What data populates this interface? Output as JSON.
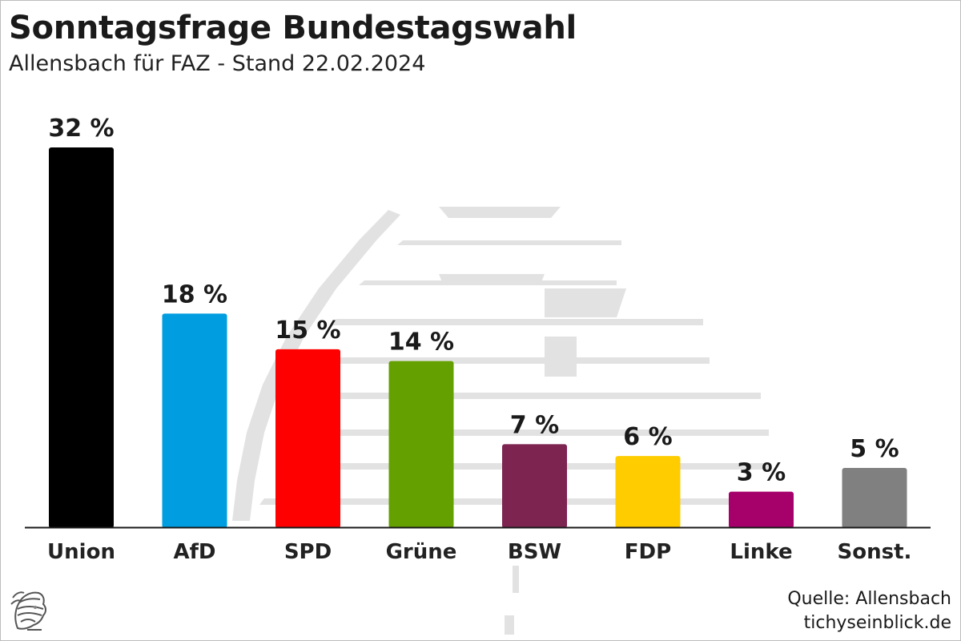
{
  "header": {
    "title": "Sonntagsfrage Bundestagswahl",
    "subtitle": "Allensbach für FAZ - Stand 22.02.2024"
  },
  "footer": {
    "source_line": "Quelle: Allensbach",
    "site_line": "tichyseinblick.de",
    "logo_icon": "hermes-head-logo-icon"
  },
  "chart_data": {
    "type": "bar",
    "categories": [
      "Union",
      "AfD",
      "SPD",
      "Grüne",
      "BSW",
      "FDP",
      "Linke",
      "Sonst."
    ],
    "values": [
      32,
      18,
      15,
      14,
      7,
      6,
      3,
      5
    ],
    "value_labels": [
      "32 %",
      "18 %",
      "15 %",
      "14 %",
      "7 %",
      "6 %",
      "3 %",
      "5 %"
    ],
    "colors": [
      "#000000",
      "#009ee0",
      "#ff0000",
      "#64a000",
      "#7d2450",
      "#ffcc00",
      "#a6006b",
      "#808080"
    ],
    "xlabel": "",
    "ylabel": "",
    "ylim": [
      0,
      32
    ],
    "grid": false,
    "legend": "none",
    "background_icon": "reichstag-dome-watermark-icon"
  }
}
